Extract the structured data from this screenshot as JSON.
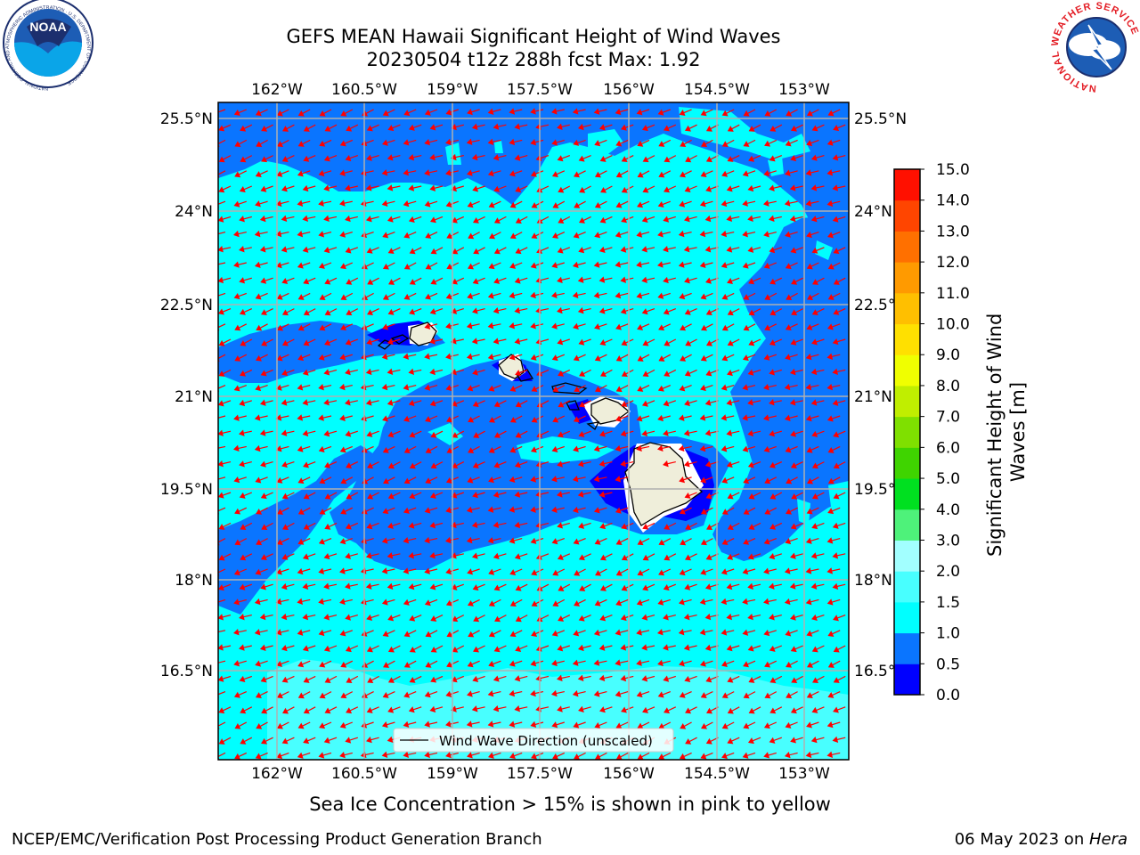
{
  "header": {
    "title_line1": "GEFS MEAN Hawaii Significant Height of Wind Waves",
    "title_line2": "20230504 t12z 288h fcst   Max: 1.92"
  },
  "logos": {
    "left": {
      "name": "noaa-logo",
      "text": "NOAA",
      "ring_text": "NATIONAL OCEANIC AND ATMOSPHERIC ADMINISTRATION · U.S. DEPARTMENT OF COMMERCE"
    },
    "right": {
      "name": "nws-logo",
      "ring_text": "NATIONAL WEATHER SERVICE"
    }
  },
  "map": {
    "lon_ticks": [
      "162°W",
      "160.5°W",
      "159°W",
      "157.5°W",
      "156°W",
      "154.5°W",
      "153°W"
    ],
    "lat_ticks": [
      "25.5°N",
      "24°N",
      "22.5°N",
      "21°N",
      "19.5°N",
      "18°N",
      "16.5°N"
    ],
    "legend_label": "Wind Wave Direction (unscaled)",
    "colors": {
      "deep_blue": "#0000ff",
      "mid_blue": "#0a75ff",
      "cyan": "#00ffff",
      "light_cyan": "#48ffff",
      "land": "#efeeda",
      "arrow": "#ff0000",
      "grid": "#b0b0b0"
    }
  },
  "colorbar": {
    "label": "Significant Height of Wind Waves [m]",
    "levels": [
      "0.0",
      "0.5",
      "1.0",
      "1.5",
      "2.0",
      "3.0",
      "4.0",
      "5.0",
      "6.0",
      "7.0",
      "8.0",
      "9.0",
      "10.0",
      "11.0",
      "12.0",
      "13.0",
      "14.0",
      "15.0"
    ],
    "colors": [
      "#0000ff",
      "#0a75ff",
      "#00ffff",
      "#48ffff",
      "#a2ffff",
      "#4ef27a",
      "#00e020",
      "#3fd400",
      "#7fe000",
      "#c0ee00",
      "#f0ff00",
      "#ffe000",
      "#ffbf00",
      "#ff9a00",
      "#ff7000",
      "#ff4500",
      "#ff1000"
    ]
  },
  "footer": {
    "note": "Sea Ice Concentration > 15% is shown in pink to yellow",
    "credit": "NCEP/EMC/Verification Post Processing Product Generation Branch",
    "date": "06 May 2023 on ",
    "machine": "Hera"
  }
}
